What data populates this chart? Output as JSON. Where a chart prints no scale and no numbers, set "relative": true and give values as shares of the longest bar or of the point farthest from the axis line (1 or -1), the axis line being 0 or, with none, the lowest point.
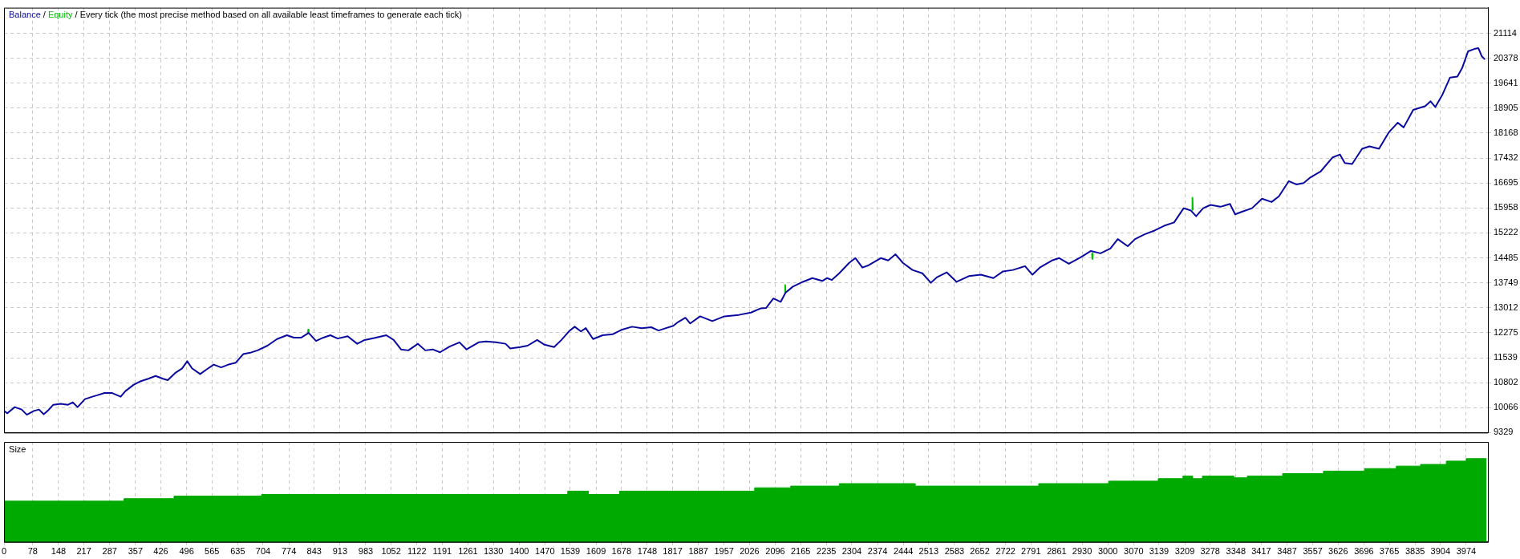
{
  "chart_data": [
    {
      "type": "line",
      "annotations": [
        "/"
      ],
      "title": "/ Every tick (the most precise method based on all available least timeframes to generate each tick)",
      "legend": "top left",
      "grid": true,
      "tick_labels": "y",
      "xlim": [
        0,
        4033
      ],
      "xticks": [
        0,
        78,
        148,
        217,
        287,
        357,
        426,
        496,
        565,
        635,
        704,
        774,
        843,
        913,
        983,
        1052,
        1122,
        1191,
        1261,
        1330,
        1400,
        1470,
        1539,
        1609,
        1678,
        1748,
        1817,
        1887,
        1957,
        2026,
        2096,
        2165,
        2235,
        2304,
        2374,
        2444,
        2513,
        2583,
        2652,
        2722,
        2791,
        2861,
        2930,
        3000,
        3070,
        3139,
        3209,
        3278,
        3348,
        3417,
        3487,
        3557,
        3626,
        3696,
        3765,
        3835,
        3904,
        3974
      ],
      "ylim": [
        9329,
        21870
      ],
      "yticks": [
        9329,
        10066,
        10802,
        11539,
        12275,
        13012,
        13749,
        14485,
        15222,
        15958,
        16695,
        17432,
        18168,
        18905,
        19641,
        20378,
        21114
      ],
      "series": [
        {
          "name": "Balance",
          "color": "#0a0aa0",
          "x": [
            0,
            9,
            29,
            48,
            62,
            81,
            95,
            108,
            121,
            134,
            154,
            174,
            187,
            200,
            220,
            240,
            253,
            273,
            293,
            317,
            330,
            352,
            372,
            392,
            412,
            432,
            445,
            465,
            484,
            498,
            511,
            533,
            551,
            570,
            590,
            610,
            630,
            650,
            669,
            689,
            716,
            742,
            769,
            788,
            808,
            828,
            848,
            868,
            887,
            907,
            934,
            960,
            980,
            1006,
            1039,
            1059,
            1079,
            1099,
            1125,
            1145,
            1165,
            1185,
            1211,
            1238,
            1257,
            1290,
            1310,
            1337,
            1363,
            1376,
            1403,
            1423,
            1449,
            1469,
            1495,
            1515,
            1535,
            1551,
            1568,
            1581,
            1601,
            1627,
            1654,
            1680,
            1707,
            1733,
            1759,
            1779,
            1799,
            1819,
            1832,
            1852,
            1865,
            1892,
            1925,
            1958,
            1997,
            2030,
            2057,
            2071,
            2091,
            2111,
            2124,
            2144,
            2171,
            2197,
            2224,
            2237,
            2250,
            2270,
            2297,
            2314,
            2333,
            2350,
            2383,
            2403,
            2423,
            2443,
            2469,
            2496,
            2519,
            2536,
            2562,
            2589,
            2622,
            2655,
            2689,
            2715,
            2742,
            2775,
            2795,
            2815,
            2848,
            2868,
            2894,
            2927,
            2954,
            2980,
            3007,
            3027,
            3054,
            3074,
            3100,
            3127,
            3153,
            3180,
            3206,
            3226,
            3240,
            3259,
            3279,
            3306,
            3332,
            3346,
            3366,
            3392,
            3419,
            3445,
            3465,
            3492,
            3512,
            3532,
            3551,
            3578,
            3611,
            3631,
            3644,
            3664,
            3691,
            3711,
            3737,
            3764,
            3788,
            3804,
            3830,
            3863,
            3877,
            3890,
            3910,
            3930,
            3950,
            3963,
            3979,
            3996,
            4007,
            4016,
            4025
          ],
          "values": [
            9969,
            9899,
            10081,
            10011,
            9857,
            9969,
            10011,
            9871,
            9997,
            10151,
            10178,
            10151,
            10220,
            10081,
            10318,
            10388,
            10430,
            10500,
            10500,
            10388,
            10555,
            10737,
            10848,
            10918,
            11002,
            10918,
            10876,
            11086,
            11225,
            11435,
            11225,
            11058,
            11197,
            11337,
            11253,
            11337,
            11393,
            11644,
            11686,
            11756,
            11895,
            12091,
            12202,
            12133,
            12133,
            12272,
            12035,
            12133,
            12202,
            12105,
            12174,
            11951,
            12063,
            12119,
            12202,
            12063,
            11784,
            11756,
            11951,
            11756,
            11784,
            11700,
            11867,
            11993,
            11784,
            11993,
            12021,
            11993,
            11951,
            11812,
            11853,
            11895,
            12063,
            11923,
            11853,
            12063,
            12314,
            12454,
            12314,
            12412,
            12091,
            12202,
            12230,
            12370,
            12454,
            12412,
            12440,
            12342,
            12412,
            12482,
            12593,
            12719,
            12551,
            12761,
            12621,
            12761,
            12803,
            12872,
            12998,
            13007,
            13287,
            13189,
            13456,
            13638,
            13778,
            13890,
            13806,
            13890,
            13834,
            14031,
            14339,
            14480,
            14199,
            14269,
            14480,
            14409,
            14592,
            14339,
            14129,
            14031,
            13750,
            13918,
            14059,
            13778,
            13947,
            13989,
            13890,
            14087,
            14129,
            14241,
            13989,
            14199,
            14409,
            14480,
            14311,
            14508,
            14690,
            14620,
            14760,
            15041,
            14830,
            15041,
            15181,
            15293,
            15433,
            15531,
            15952,
            15882,
            15714,
            15952,
            16050,
            15994,
            16078,
            15770,
            15854,
            15952,
            16233,
            16135,
            16303,
            16752,
            16654,
            16696,
            16864,
            17032,
            17453,
            17537,
            17285,
            17257,
            17705,
            17776,
            17705,
            18196,
            18477,
            18337,
            18856,
            18968,
            19108,
            18940,
            19318,
            19809,
            19837,
            20090,
            20581,
            20651,
            20679,
            20441,
            20342
          ]
        },
        {
          "name": "Equity",
          "color": "#00c000",
          "x": [
            826,
            827,
            828,
            829,
            2122,
            2123,
            2124,
            2125,
            2957,
            2958,
            2959,
            2960,
            3229,
            3230,
            3231
          ],
          "values": [
            12272,
            12370,
            12272,
            null,
            13456,
            13680,
            13456,
            null,
            14620,
            14452,
            14620,
            null,
            15900,
            16261,
            15900
          ]
        }
      ]
    },
    {
      "type": "area",
      "title": "Size",
      "relative": true,
      "grid": "x",
      "tick_labels": "x",
      "xlim": [
        0,
        4033
      ],
      "xticks": [
        0,
        78,
        148,
        217,
        287,
        357,
        426,
        496,
        565,
        635,
        704,
        774,
        843,
        913,
        983,
        1052,
        1122,
        1191,
        1261,
        1330,
        1400,
        1470,
        1539,
        1609,
        1678,
        1748,
        1817,
        1887,
        1957,
        2026,
        2096,
        2165,
        2235,
        2304,
        2374,
        2444,
        2513,
        2583,
        2652,
        2722,
        2791,
        2861,
        2930,
        3000,
        3070,
        3139,
        3209,
        3278,
        3348,
        3417,
        3487,
        3557,
        3626,
        3696,
        3765,
        3835,
        3904,
        3974
      ],
      "series": [
        {
          "color": "#00aa00",
          "x": [
            0,
            326,
            326,
            462,
            462,
            700,
            700,
            1532,
            1532,
            1588,
            1588,
            1673,
            1673,
            2040,
            2040,
            2138,
            2138,
            2270,
            2270,
            2476,
            2476,
            2812,
            2812,
            3003,
            3003,
            3137,
            3137,
            3204,
            3204,
            3230,
            3230,
            3257,
            3257,
            3342,
            3342,
            3379,
            3379,
            3475,
            3475,
            3586,
            3586,
            3698,
            3698,
            3784,
            3784,
            3850,
            3850,
            3920,
            3920,
            3974,
            3974,
            4029
          ],
          "values": [
            0.49,
            0.49,
            0.52,
            0.52,
            0.55,
            0.55,
            0.57,
            0.57,
            0.61,
            0.61,
            0.57,
            0.57,
            0.61,
            0.61,
            0.65,
            0.65,
            0.67,
            0.67,
            0.7,
            0.7,
            0.67,
            0.67,
            0.7,
            0.7,
            0.73,
            0.73,
            0.76,
            0.76,
            0.79,
            0.79,
            0.76,
            0.76,
            0.79,
            0.79,
            0.77,
            0.77,
            0.79,
            0.79,
            0.82,
            0.82,
            0.85,
            0.85,
            0.88,
            0.88,
            0.91,
            0.91,
            0.93,
            0.93,
            0.97,
            0.97,
            1,
            1
          ]
        }
      ]
    }
  ]
}
